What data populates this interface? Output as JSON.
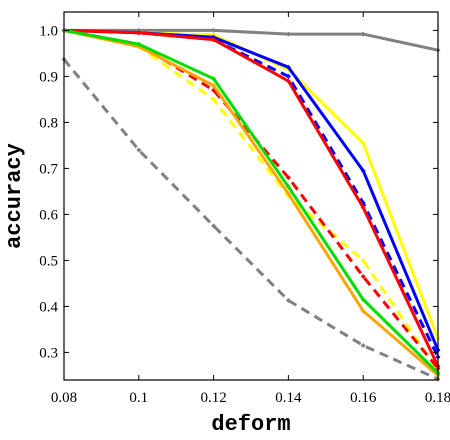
{
  "chart_data": {
    "type": "line",
    "title": "",
    "xlabel": "deform",
    "ylabel": "accuracy",
    "x": [
      0.08,
      0.1,
      0.12,
      0.14,
      0.16,
      0.18
    ],
    "xlim": [
      0.08,
      0.18
    ],
    "ylim": [
      0.24,
      1.04
    ],
    "xticks": [
      "0.08",
      "0.1",
      "0.12",
      "0.14",
      "0.16",
      "0.18"
    ],
    "yticks": [
      "0.3",
      "0.4",
      "0.5",
      "0.6",
      "0.7",
      "0.8",
      "0.9",
      "1.0"
    ],
    "ytick_values": [
      0.3,
      0.4,
      0.5,
      0.6,
      0.7,
      0.8,
      0.9,
      1.0
    ],
    "grid": false,
    "legend": false,
    "series": [
      {
        "color": "#808080",
        "style": "solid",
        "values": [
          1.0,
          1.0,
          1.0,
          0.992,
          0.992,
          0.957
        ]
      },
      {
        "color": "#808080",
        "style": "dashed",
        "values": [
          0.937,
          0.74,
          0.575,
          0.413,
          0.315,
          0.242
        ]
      },
      {
        "color": "#ffff00",
        "style": "solid",
        "values": [
          1.0,
          0.995,
          0.99,
          0.915,
          0.755,
          0.33
        ]
      },
      {
        "color": "#ffff00",
        "style": "dashed",
        "values": [
          1.0,
          0.965,
          0.85,
          0.64,
          0.5,
          0.26
        ]
      },
      {
        "color": "#0000ff",
        "style": "solid",
        "values": [
          1.0,
          0.995,
          0.985,
          0.92,
          0.695,
          0.305
        ]
      },
      {
        "color": "#0000ff",
        "style": "dashed",
        "values": [
          1.0,
          0.995,
          0.98,
          0.9,
          0.625,
          0.29
        ]
      },
      {
        "color": "#ff0000",
        "style": "solid",
        "values": [
          1.0,
          0.995,
          0.98,
          0.89,
          0.615,
          0.27
        ]
      },
      {
        "color": "#ff0000",
        "style": "dashed",
        "values": [
          1.0,
          0.97,
          0.87,
          0.68,
          0.465,
          0.265
        ]
      },
      {
        "color": "#ffa500",
        "style": "solid",
        "values": [
          1.0,
          0.965,
          0.88,
          0.645,
          0.39,
          0.25
        ]
      },
      {
        "color": "#00dd00",
        "style": "solid",
        "values": [
          1.0,
          0.97,
          0.895,
          0.66,
          0.415,
          0.255
        ]
      }
    ]
  }
}
